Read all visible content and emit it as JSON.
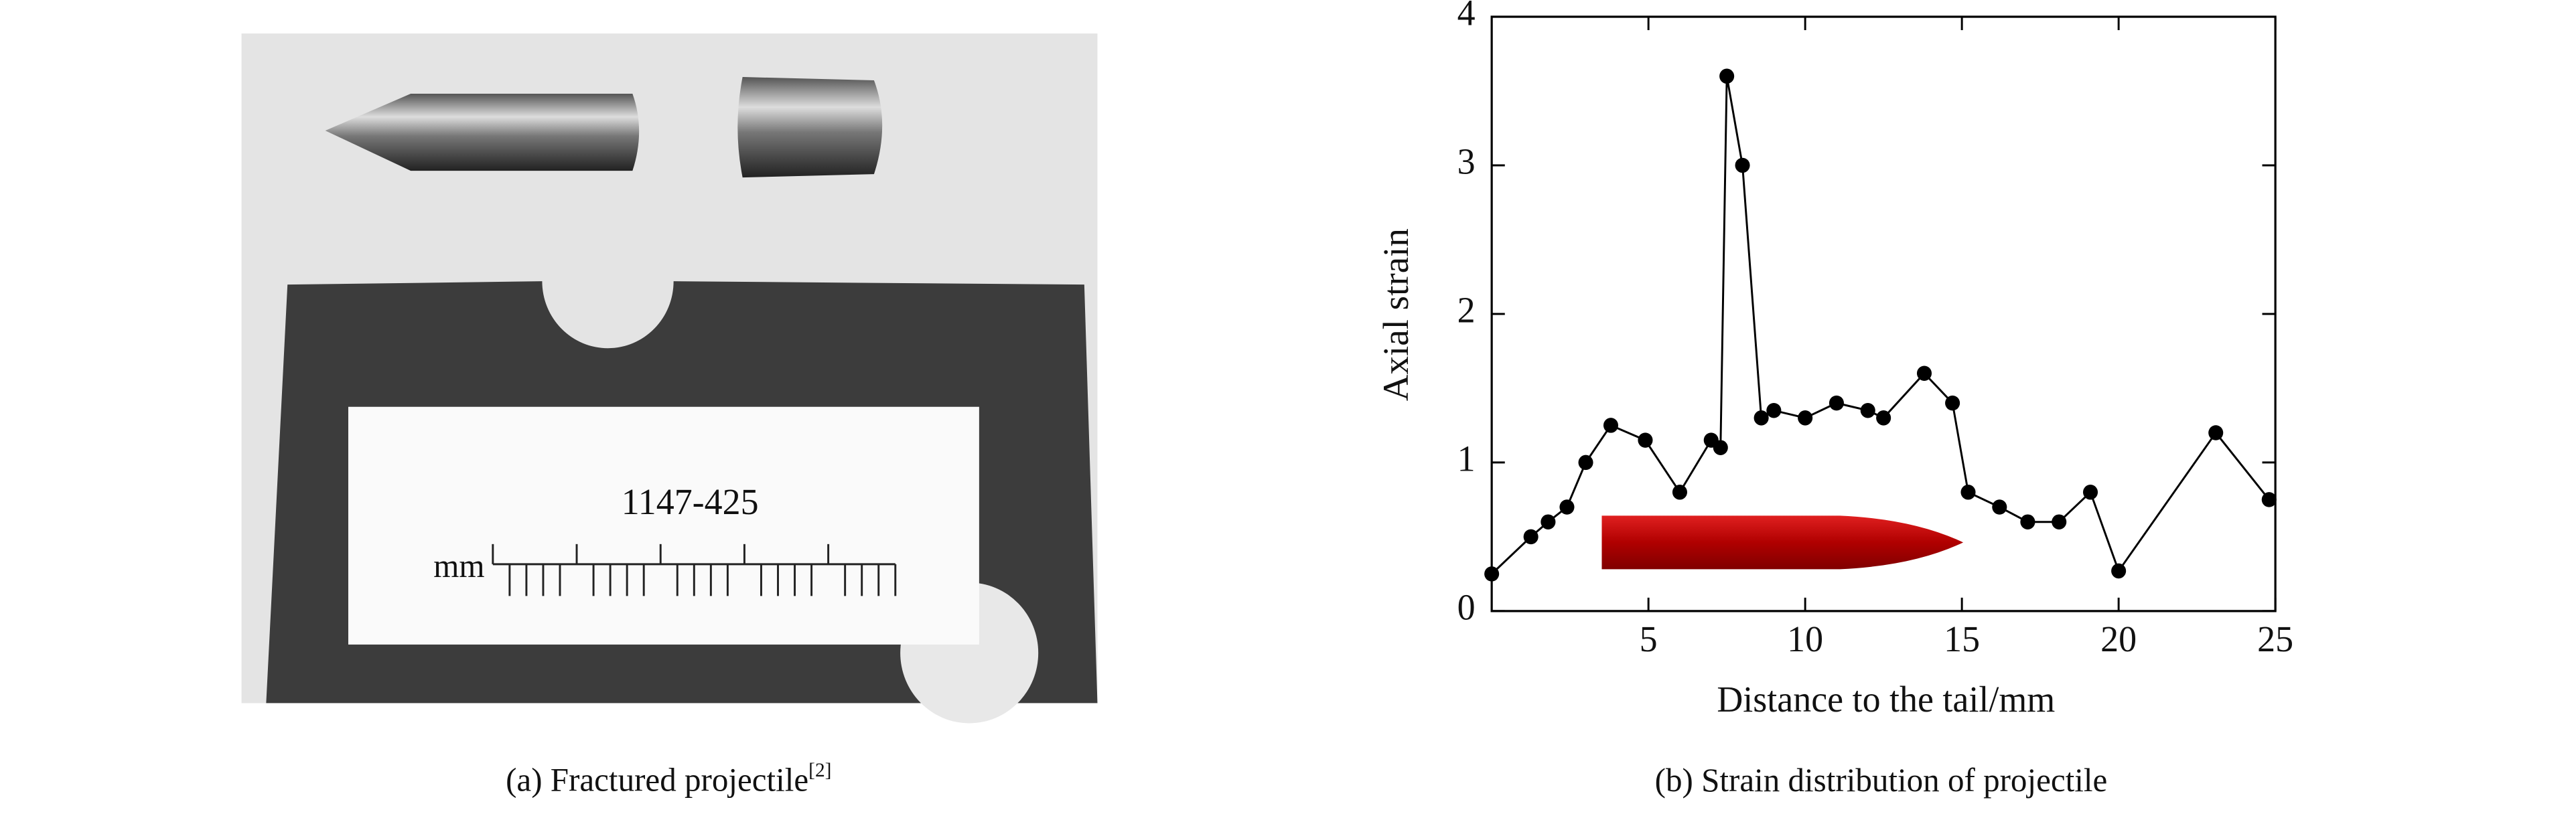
{
  "photo": {
    "caption": "(a) Fractured projectile",
    "caption_ref": "[2]",
    "label": "1147-425",
    "unit": "mm"
  },
  "chart_data": {
    "type": "line",
    "caption": "(b) Strain distribution of projectile",
    "x_label": "Distance to the tail/mm",
    "y_label": "Axial strain",
    "x": [
      0,
      1.25,
      1.8,
      2.4,
      3,
      3.8,
      4.9,
      6,
      7,
      7.3,
      7.5,
      8,
      8.6,
      9,
      10,
      11,
      12,
      12.5,
      13.8,
      14.7,
      15.2,
      16.2,
      17.1,
      18.1,
      19.1,
      20,
      23.1,
      24.8
    ],
    "values": [
      0.25,
      0.5,
      0.6,
      0.7,
      1.0,
      1.25,
      1.15,
      0.8,
      1.15,
      1.1,
      3.6,
      3.0,
      1.3,
      1.35,
      1.3,
      1.4,
      1.35,
      1.3,
      1.6,
      1.4,
      0.8,
      0.7,
      0.6,
      0.6,
      0.8,
      0.27,
      1.2,
      0.75
    ],
    "color": "#000000",
    "xlim": [
      0,
      25
    ],
    "xticks": [
      5,
      10,
      15,
      20,
      25
    ],
    "ylim": [
      0,
      4
    ],
    "yticks": [
      0,
      1,
      2,
      3,
      4
    ]
  }
}
